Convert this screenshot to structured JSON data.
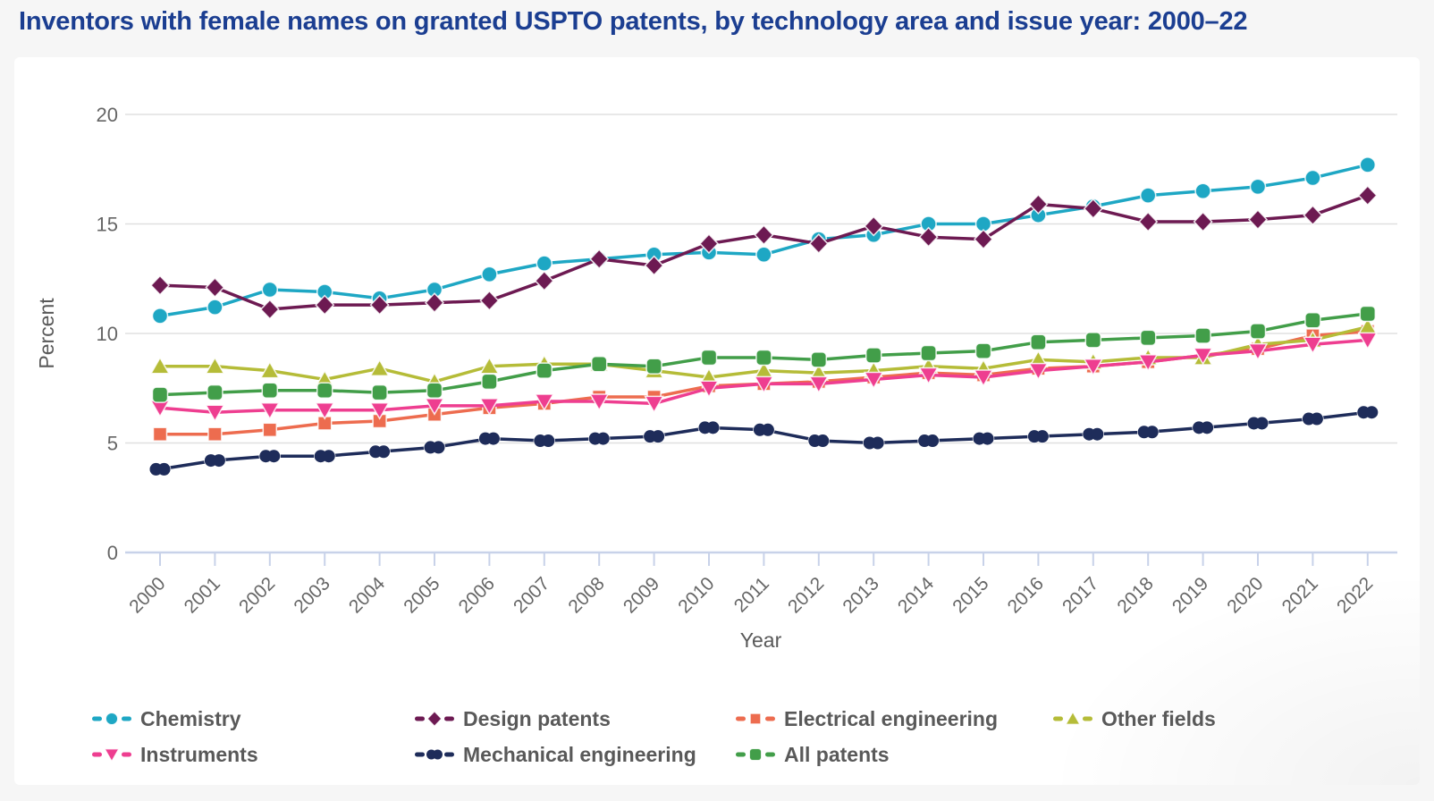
{
  "page": {
    "title": "Inventors with female names on granted USPTO patents, by technology area and issue year: 2000–22",
    "background_color": "#f6f6f6",
    "panel_color": "#ffffff",
    "title_color": "#1b3e91"
  },
  "chart_data": {
    "type": "line",
    "title": "Inventors with female names on granted USPTO patents, by technology area and issue year: 2000–22",
    "xlabel": "Year",
    "ylabel": "Percent",
    "ylim": [
      0,
      20
    ],
    "yticks": [
      0,
      5,
      10,
      15,
      20
    ],
    "grid": "horizontal",
    "legend_position": "bottom",
    "axis_colors": {
      "gridline": "#e0e0e0",
      "baseline": "#c8d2e9",
      "tick_label": "#666666",
      "axis_title": "#595959"
    },
    "categories": [
      2000,
      2001,
      2002,
      2003,
      2004,
      2005,
      2006,
      2007,
      2008,
      2009,
      2010,
      2011,
      2012,
      2013,
      2014,
      2015,
      2016,
      2017,
      2018,
      2019,
      2020,
      2021,
      2022
    ],
    "series": [
      {
        "name": "Chemistry",
        "marker": "circle",
        "color": "#1ea7c4",
        "values": [
          10.8,
          11.2,
          12.0,
          11.9,
          11.6,
          12.0,
          12.7,
          13.2,
          13.4,
          13.6,
          13.7,
          13.6,
          14.3,
          14.5,
          15.0,
          15.0,
          15.4,
          15.8,
          16.3,
          16.5,
          16.7,
          17.1,
          17.7
        ]
      },
      {
        "name": "Design patents",
        "marker": "diamond",
        "color": "#6d1a52",
        "values": [
          12.2,
          12.1,
          11.1,
          11.3,
          11.3,
          11.4,
          11.5,
          12.4,
          13.4,
          13.1,
          14.1,
          14.5,
          14.1,
          14.9,
          14.4,
          14.3,
          15.9,
          15.7,
          15.1,
          15.1,
          15.2,
          15.4,
          16.3
        ]
      },
      {
        "name": "Electrical engineering",
        "marker": "square",
        "color": "#ed6c4f",
        "values": [
          5.4,
          5.4,
          5.6,
          5.9,
          6.0,
          6.3,
          6.6,
          6.8,
          7.1,
          7.1,
          7.6,
          7.7,
          7.8,
          8.0,
          8.2,
          8.1,
          8.4,
          8.5,
          8.7,
          9.0,
          9.3,
          9.9,
          10.1
        ]
      },
      {
        "name": "Other fields",
        "marker": "triangle-up",
        "color": "#b5bc38",
        "values": [
          8.5,
          8.5,
          8.3,
          7.9,
          8.4,
          7.8,
          8.5,
          8.6,
          8.6,
          8.3,
          8.0,
          8.3,
          8.2,
          8.3,
          8.5,
          8.4,
          8.8,
          8.7,
          8.9,
          8.9,
          9.5,
          9.7,
          10.3
        ]
      },
      {
        "name": "Instruments",
        "marker": "triangle-down",
        "color": "#ee3e90",
        "values": [
          6.6,
          6.4,
          6.5,
          6.5,
          6.5,
          6.7,
          6.7,
          6.9,
          6.9,
          6.8,
          7.5,
          7.7,
          7.7,
          7.9,
          8.1,
          8.0,
          8.3,
          8.5,
          8.7,
          9.0,
          9.2,
          9.5,
          9.7
        ]
      },
      {
        "name": "Mechanical engineering",
        "marker": "double-lobe",
        "color": "#1e2c5a",
        "values": [
          3.8,
          4.2,
          4.4,
          4.4,
          4.6,
          4.8,
          5.2,
          5.1,
          5.2,
          5.3,
          5.7,
          5.6,
          5.1,
          5.0,
          5.1,
          5.2,
          5.3,
          5.4,
          5.5,
          5.7,
          5.9,
          6.1,
          6.4
        ]
      },
      {
        "name": "All patents",
        "marker": "rounded-square",
        "color": "#429e49",
        "values": [
          7.2,
          7.3,
          7.4,
          7.4,
          7.3,
          7.4,
          7.8,
          8.3,
          8.6,
          8.5,
          8.9,
          8.9,
          8.8,
          9.0,
          9.1,
          9.2,
          9.6,
          9.7,
          9.8,
          9.9,
          10.1,
          10.6,
          10.9
        ]
      }
    ],
    "legend_rows": [
      [
        "Chemistry",
        "Design patents",
        "Electrical engineering",
        "Other fields"
      ],
      [
        "Instruments",
        "Mechanical engineering",
        "All patents"
      ]
    ]
  }
}
